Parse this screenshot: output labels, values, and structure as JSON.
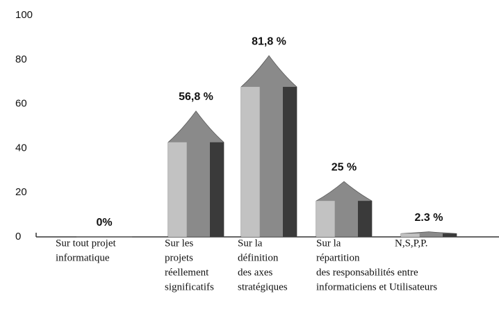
{
  "chart_data": {
    "type": "bar",
    "categories": [
      [
        "Sur tout projet",
        "informatique"
      ],
      [
        "Sur les",
        "projets",
        "réellement",
        "significatifs"
      ],
      [
        "Sur la",
        "définition",
        "des axes",
        "stratégiques"
      ],
      [
        "Sur la",
        "répartition",
        "des responsabilités entre",
        "informaticiens et Utilisateurs"
      ],
      [
        "N,S,P,P."
      ]
    ],
    "values": [
      0,
      56.8,
      81.8,
      25,
      2.3
    ],
    "value_labels": [
      "0%",
      "56,8 %",
      "81,8 %",
      "25 %",
      "2.3 %"
    ],
    "color": "#8a8a8a",
    "ylim": [
      0,
      100
    ],
    "yticks": [
      0,
      20,
      40,
      60,
      80,
      100
    ],
    "grid": false
  }
}
